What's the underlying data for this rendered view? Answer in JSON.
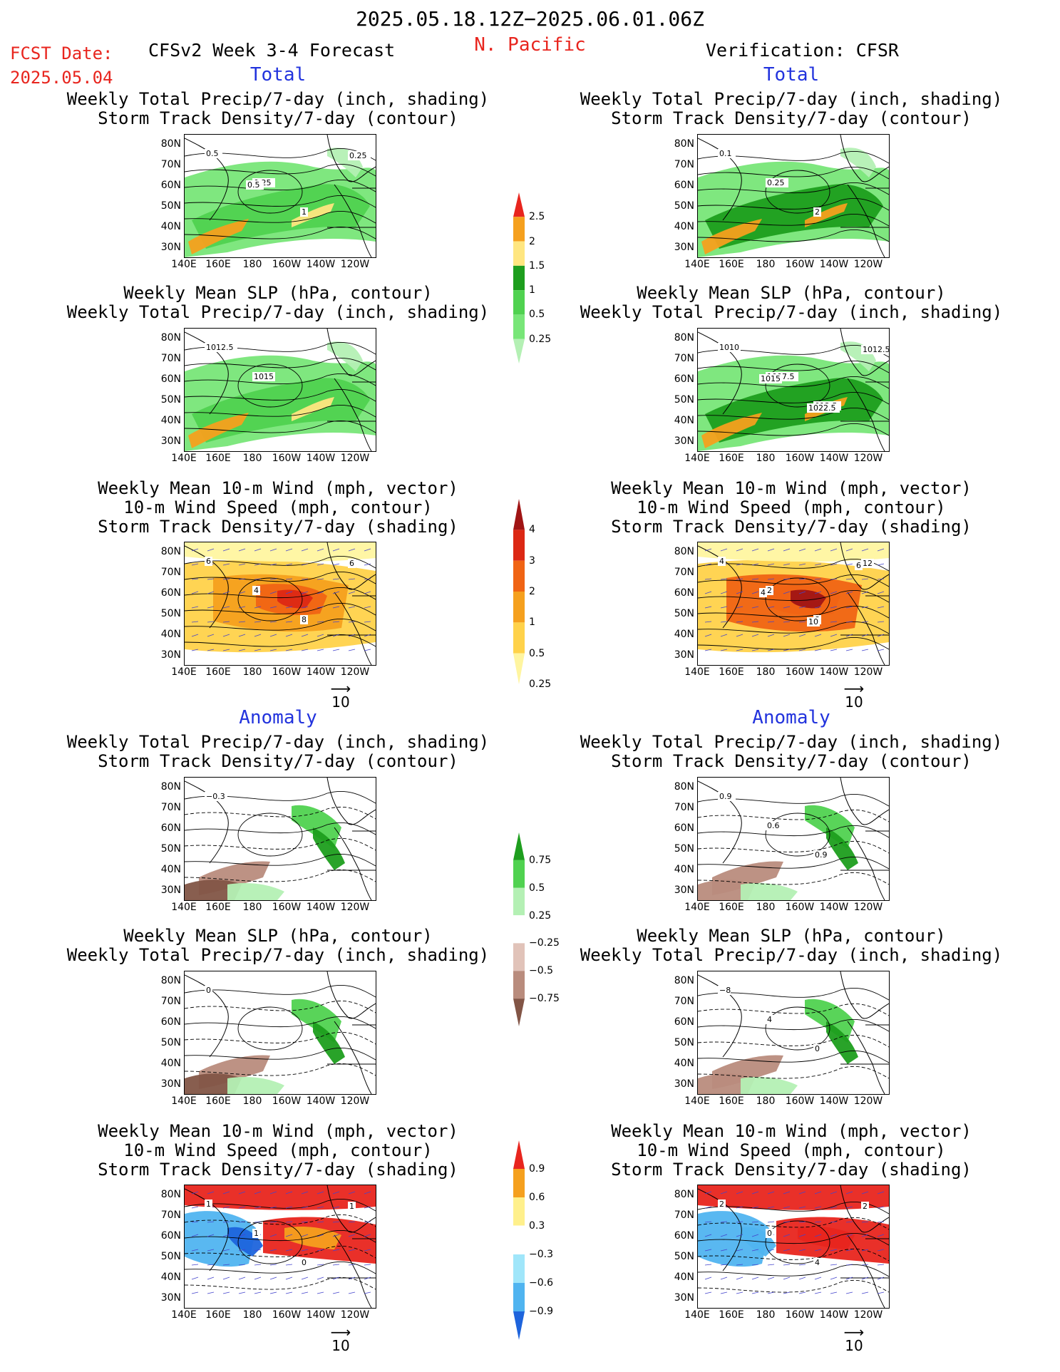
{
  "header": {
    "date_range": "2025.05.18.12Z−2025.06.01.06Z",
    "region": "N. Pacific",
    "fcst_label": "FCST Date:",
    "fcst_date": "2025.05.04",
    "product": "CFSv2 Week 3-4 Forecast",
    "verification": "Verification: CFSR"
  },
  "sections": {
    "total": "Total",
    "anomaly": "Anomaly"
  },
  "panel_titles": {
    "precip_storm": [
      "Weekly Total Precip/7-day (inch, shading)",
      "Storm Track Density/7-day (contour)"
    ],
    "slp_precip": [
      "Weekly Mean SLP (hPa, contour)",
      "Weekly Total Precip/7-day (inch, shading)"
    ],
    "wind_storm": [
      "Weekly Mean 10-m Wind (mph, vector)",
      "10-m Wind Speed (mph, contour)",
      "Storm Track Density/7-day (shading)"
    ]
  },
  "axes": {
    "lat": [
      "80N",
      "70N",
      "60N",
      "50N",
      "40N",
      "30N"
    ],
    "lon": [
      "140E",
      "160E",
      "180",
      "160W",
      "140W",
      "120W"
    ]
  },
  "vector_ref": "10",
  "colors": {
    "header_red": "#e8251e",
    "section_blue": "#2233dd",
    "green_scale": [
      "#b4f0b4",
      "#78e678",
      "#50d250",
      "#1e9e1e"
    ],
    "yellow_orange": [
      "#fff5a0",
      "#ffd24a",
      "#f5a01e",
      "#f06414",
      "#dc2814",
      "#a01414"
    ],
    "brown_scale": [
      "#e1c3b9",
      "#b98c7d",
      "#825546"
    ],
    "blue_scale": [
      "#a0e6fa",
      "#50b4f0",
      "#1e64dc"
    ]
  },
  "chart_data": [
    {
      "type": "heatmap",
      "panel": "total-precip-storm",
      "colorbar": {
        "levels": [
          "0.25",
          "0.5",
          "1",
          "1.5",
          "2",
          "2.5"
        ],
        "colors": [
          "#b4f0b4",
          "#78e678",
          "#50d250",
          "#1e9e1e",
          "#ffe680",
          "#f5a01e",
          "#e8251e"
        ]
      },
      "forecast_contour_labels": [
        "0.5",
        "0.25",
        "1",
        "0.25",
        "0.5"
      ],
      "verification_contour_labels": [
        "0.1",
        "0.25",
        "2"
      ]
    },
    {
      "type": "heatmap",
      "panel": "total-slp-precip",
      "forecast_contour_labels": [
        "1012.5",
        "1015"
      ],
      "verification_contour_labels": [
        "1010",
        "1007.5",
        "012.5",
        "1012.5",
        "1015",
        "1022.5"
      ]
    },
    {
      "type": "heatmap",
      "panel": "total-wind-storm",
      "colorbar": {
        "levels": [
          "0.25",
          "0.5",
          "1",
          "2",
          "3",
          "4"
        ],
        "colors": [
          "#fff5a0",
          "#ffd24a",
          "#f5a01e",
          "#f06414",
          "#dc2814",
          "#a01414"
        ]
      },
      "forecast_contour_labels": [
        "6",
        "4",
        "8",
        "6"
      ],
      "verification_contour_labels": [
        "4",
        "2",
        "8",
        "12",
        "4",
        "10",
        "6"
      ]
    },
    {
      "type": "heatmap",
      "panel": "anomaly-precip-storm",
      "colorbar": {
        "levels": [
          "−0.75",
          "−0.5",
          "−0.25",
          "0.25",
          "0.5",
          "0.75"
        ],
        "colors": [
          "#825546",
          "#b98c7d",
          "#e1c3b9",
          "#ffffff",
          "#b4f0b4",
          "#50d250",
          "#1e9e1e"
        ]
      },
      "forecast_contour_labels": [
        "−0.3"
      ],
      "verification_contour_labels": [
        "0.9",
        "0.6",
        "0.9"
      ]
    },
    {
      "type": "heatmap",
      "panel": "anomaly-slp-precip",
      "forecast_contour_labels": [
        "0"
      ],
      "verification_contour_labels": [
        "−8",
        "4",
        "0"
      ]
    },
    {
      "type": "heatmap",
      "panel": "anomaly-wind-storm",
      "colorbar": {
        "levels": [
          "−0.9",
          "−0.6",
          "−0.3",
          "0.3",
          "0.6",
          "0.9"
        ],
        "colors": [
          "#1e64dc",
          "#50b4f0",
          "#a0e6fa",
          "#ffffff",
          "#fff08c",
          "#f5a01e",
          "#e8251e"
        ]
      },
      "forecast_contour_labels": [
        "1",
        "1",
        "0",
        "1"
      ],
      "verification_contour_labels": [
        "2",
        "0",
        "4",
        "2"
      ]
    }
  ]
}
